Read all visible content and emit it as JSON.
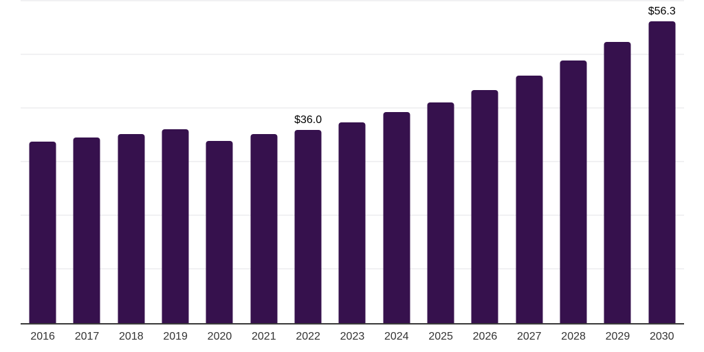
{
  "chart_data": {
    "type": "bar",
    "title": "",
    "xlabel": "",
    "ylabel": "",
    "categories": [
      "2016",
      "2017",
      "2018",
      "2019",
      "2020",
      "2021",
      "2022",
      "2023",
      "2024",
      "2025",
      "2026",
      "2027",
      "2028",
      "2029",
      "2030"
    ],
    "values": [
      33.9,
      34.6,
      35.3,
      36.2,
      34.0,
      35.3,
      36.0,
      37.5,
      39.3,
      41.2,
      43.4,
      46.1,
      49.0,
      52.4,
      56.3
    ],
    "data_labels": [
      "",
      "",
      "",
      "",
      "",
      "",
      "$36.0",
      "",
      "",
      "",
      "",
      "",
      "",
      "",
      "$56.3"
    ],
    "value_prefix": "$",
    "ylim": [
      0,
      60
    ],
    "gridline_interval": 10,
    "grid": true,
    "legend_position": "none",
    "colors": {
      "bar": "#36114D",
      "gridline": "#f1f1f3",
      "axis_line": "#3a3a3a",
      "tick_label": "#333333",
      "data_label": "#000000",
      "background": "#ffffff"
    }
  }
}
